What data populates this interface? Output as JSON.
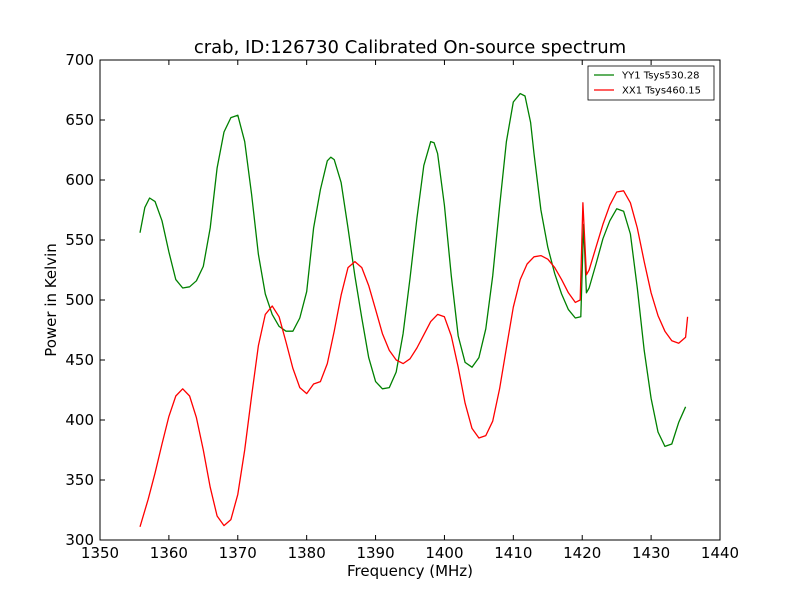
{
  "chart_data": {
    "type": "line",
    "title": "crab, ID:126730 Calibrated On-source spectrum",
    "xlabel": "Frequency (MHz)",
    "ylabel": "Power in Kelvin",
    "xlim": [
      1350,
      1440
    ],
    "ylim": [
      300,
      700
    ],
    "xticks": [
      1350,
      1360,
      1370,
      1380,
      1390,
      1400,
      1410,
      1420,
      1430,
      1440
    ],
    "yticks": [
      300,
      350,
      400,
      450,
      500,
      550,
      600,
      650,
      700
    ],
    "grid": false,
    "legend_position": "top-right",
    "series": [
      {
        "name": "YY1 Tsys530.28",
        "color": "#008000",
        "x": [
          1355.8,
          1356.5,
          1357.2,
          1358,
          1359,
          1360,
          1361,
          1362,
          1363,
          1364,
          1365,
          1366,
          1367,
          1368,
          1369,
          1370,
          1371,
          1372,
          1373,
          1374,
          1375,
          1376,
          1377,
          1378,
          1379,
          1380,
          1381,
          1382,
          1383,
          1383.5,
          1384,
          1385,
          1386,
          1387,
          1388,
          1389,
          1390,
          1391,
          1392,
          1393,
          1394,
          1395,
          1396,
          1397,
          1398,
          1398.5,
          1399,
          1400,
          1401,
          1402,
          1403,
          1404,
          1405,
          1406,
          1407,
          1408,
          1409,
          1410,
          1411,
          1411.7,
          1412.5,
          1413,
          1414,
          1415,
          1416,
          1417,
          1418,
          1419,
          1419.8,
          1420.2,
          1420.6,
          1421,
          1422,
          1423,
          1424,
          1425,
          1426,
          1427,
          1428,
          1429,
          1430,
          1431,
          1432,
          1433,
          1434,
          1435
        ],
        "values": [
          556,
          577,
          585,
          582,
          566,
          540,
          517,
          510,
          511,
          516,
          528,
          560,
          610,
          640,
          652,
          654,
          632,
          588,
          538,
          505,
          488,
          478,
          474,
          474,
          485,
          507,
          560,
          592,
          616,
          619,
          617,
          598,
          560,
          520,
          485,
          452,
          432,
          426,
          427,
          440,
          472,
          518,
          568,
          612,
          632,
          631,
          622,
          579,
          520,
          470,
          448,
          444,
          452,
          476,
          520,
          578,
          632,
          665,
          672,
          670,
          648,
          622,
          575,
          544,
          522,
          505,
          492,
          485,
          486,
          563,
          506,
          510,
          530,
          551,
          566,
          576,
          574,
          555,
          510,
          458,
          418,
          390,
          378,
          380,
          398,
          411
        ]
      },
      {
        "name": "XX1 Tsys460.15",
        "color": "#ff0000",
        "x": [
          1355.8,
          1357,
          1358,
          1359,
          1360,
          1361,
          1362,
          1363,
          1364,
          1365,
          1366,
          1367,
          1368,
          1369,
          1370,
          1371,
          1372,
          1373,
          1374,
          1375,
          1376,
          1377,
          1378,
          1379,
          1380,
          1381,
          1382,
          1383,
          1384,
          1385,
          1386,
          1387,
          1388,
          1389,
          1390,
          1391,
          1392,
          1393,
          1394,
          1395,
          1396,
          1397,
          1398,
          1399,
          1400,
          1401,
          1402,
          1403,
          1404,
          1405,
          1406,
          1407,
          1408,
          1409,
          1410,
          1411,
          1412,
          1413,
          1414,
          1415,
          1416,
          1417,
          1418,
          1419,
          1419.7,
          1420.1,
          1420.6,
          1421,
          1422,
          1423,
          1424,
          1425,
          1426,
          1427,
          1428,
          1429,
          1430,
          1431,
          1432,
          1433,
          1434,
          1435,
          1435.3
        ],
        "values": [
          311,
          334,
          356,
          380,
          403,
          420,
          426,
          420,
          402,
          375,
          344,
          320,
          312,
          317,
          338,
          375,
          420,
          462,
          488,
          495,
          486,
          465,
          443,
          427,
          422,
          430,
          432,
          447,
          474,
          504,
          527,
          532,
          527,
          512,
          492,
          472,
          458,
          450,
          447,
          451,
          460,
          471,
          482,
          488,
          486,
          470,
          444,
          414,
          393,
          385,
          387,
          399,
          426,
          460,
          494,
          517,
          530,
          536,
          537,
          534,
          527,
          517,
          506,
          498,
          500,
          581,
          521,
          525,
          544,
          563,
          579,
          590,
          591,
          581,
          560,
          532,
          506,
          487,
          474,
          466,
          464,
          469,
          486
        ]
      }
    ]
  }
}
